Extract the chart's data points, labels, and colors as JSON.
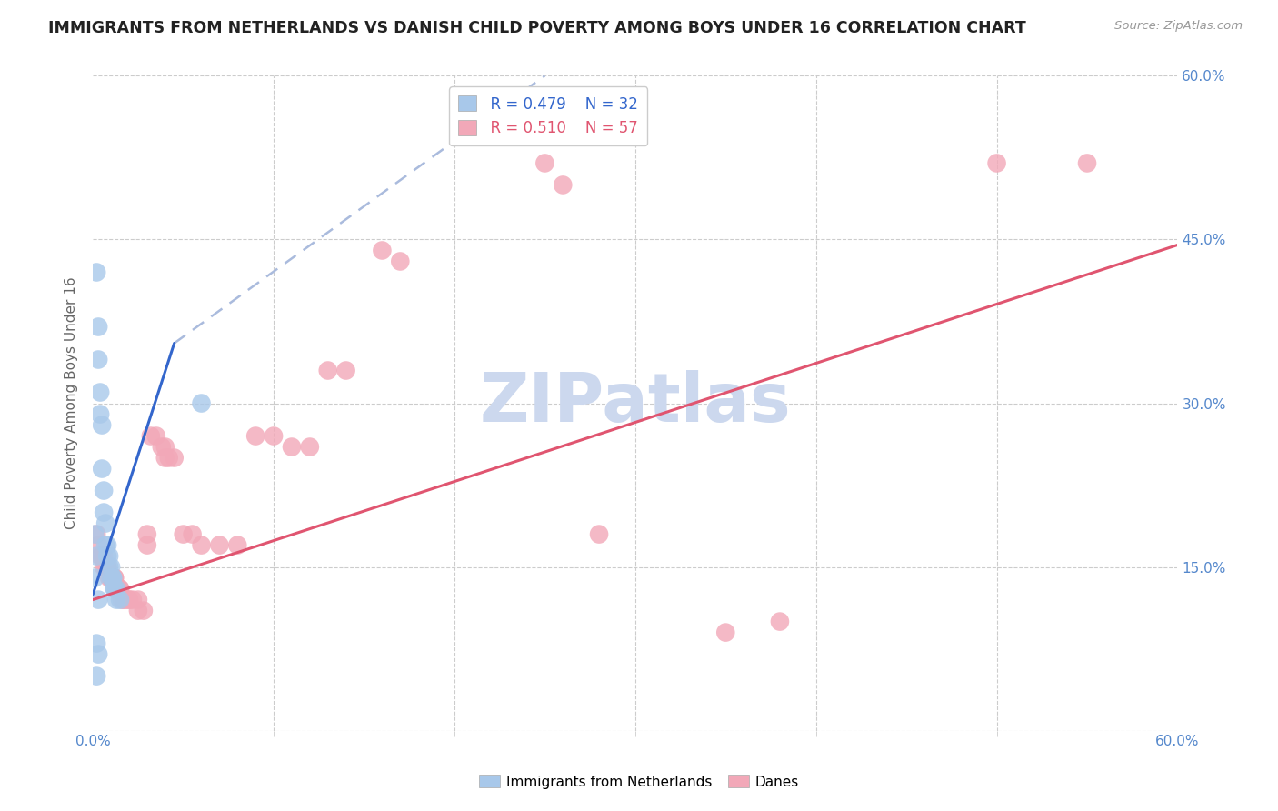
{
  "title": "IMMIGRANTS FROM NETHERLANDS VS DANISH CHILD POVERTY AMONG BOYS UNDER 16 CORRELATION CHART",
  "source": "Source: ZipAtlas.com",
  "ylabel": "Child Poverty Among Boys Under 16",
  "xlim": [
    0.0,
    0.6
  ],
  "ylim": [
    0.0,
    0.6
  ],
  "yticks_right": [
    0.0,
    0.15,
    0.3,
    0.45,
    0.6
  ],
  "ytick_labels_right": [
    "",
    "15.0%",
    "30.0%",
    "45.0%",
    "60.0%"
  ],
  "xtick_left_label": "0.0%",
  "xtick_right_label": "60.0%",
  "legend_blue_r": "R = 0.479",
  "legend_blue_n": "N = 32",
  "legend_pink_r": "R = 0.510",
  "legend_pink_n": "N = 57",
  "legend_label_blue": "Immigrants from Netherlands",
  "legend_label_pink": "Danes",
  "blue_color": "#a8c8ea",
  "pink_color": "#f2a8b8",
  "blue_line_color": "#3366cc",
  "pink_line_color": "#e05570",
  "blue_dash_color": "#aabbdd",
  "title_color": "#222222",
  "axis_label_color": "#5588cc",
  "watermark_color": "#ccd8ee",
  "background_color": "#ffffff",
  "grid_color": "#cccccc",
  "blue_scatter": [
    [
      0.002,
      0.42
    ],
    [
      0.003,
      0.37
    ],
    [
      0.003,
      0.34
    ],
    [
      0.004,
      0.31
    ],
    [
      0.004,
      0.29
    ],
    [
      0.005,
      0.28
    ],
    [
      0.005,
      0.24
    ],
    [
      0.006,
      0.22
    ],
    [
      0.006,
      0.2
    ],
    [
      0.007,
      0.19
    ],
    [
      0.007,
      0.17
    ],
    [
      0.008,
      0.17
    ],
    [
      0.008,
      0.16
    ],
    [
      0.009,
      0.16
    ],
    [
      0.009,
      0.15
    ],
    [
      0.01,
      0.15
    ],
    [
      0.01,
      0.14
    ],
    [
      0.011,
      0.14
    ],
    [
      0.011,
      0.14
    ],
    [
      0.012,
      0.13
    ],
    [
      0.012,
      0.13
    ],
    [
      0.013,
      0.13
    ],
    [
      0.013,
      0.12
    ],
    [
      0.015,
      0.12
    ],
    [
      0.001,
      0.18
    ],
    [
      0.002,
      0.16
    ],
    [
      0.001,
      0.14
    ],
    [
      0.003,
      0.12
    ],
    [
      0.002,
      0.08
    ],
    [
      0.003,
      0.07
    ],
    [
      0.002,
      0.05
    ],
    [
      0.06,
      0.3
    ]
  ],
  "pink_scatter": [
    [
      0.002,
      0.18
    ],
    [
      0.003,
      0.17
    ],
    [
      0.004,
      0.16
    ],
    [
      0.005,
      0.16
    ],
    [
      0.006,
      0.16
    ],
    [
      0.006,
      0.15
    ],
    [
      0.007,
      0.15
    ],
    [
      0.008,
      0.15
    ],
    [
      0.008,
      0.15
    ],
    [
      0.009,
      0.14
    ],
    [
      0.01,
      0.14
    ],
    [
      0.01,
      0.14
    ],
    [
      0.011,
      0.14
    ],
    [
      0.012,
      0.14
    ],
    [
      0.012,
      0.14
    ],
    [
      0.013,
      0.13
    ],
    [
      0.013,
      0.13
    ],
    [
      0.015,
      0.13
    ],
    [
      0.015,
      0.13
    ],
    [
      0.016,
      0.12
    ],
    [
      0.017,
      0.12
    ],
    [
      0.018,
      0.12
    ],
    [
      0.02,
      0.12
    ],
    [
      0.02,
      0.12
    ],
    [
      0.022,
      0.12
    ],
    [
      0.025,
      0.12
    ],
    [
      0.025,
      0.11
    ],
    [
      0.028,
      0.11
    ],
    [
      0.03,
      0.18
    ],
    [
      0.03,
      0.17
    ],
    [
      0.032,
      0.27
    ],
    [
      0.035,
      0.27
    ],
    [
      0.038,
      0.26
    ],
    [
      0.04,
      0.26
    ],
    [
      0.04,
      0.25
    ],
    [
      0.042,
      0.25
    ],
    [
      0.045,
      0.25
    ],
    [
      0.05,
      0.18
    ],
    [
      0.055,
      0.18
    ],
    [
      0.06,
      0.17
    ],
    [
      0.07,
      0.17
    ],
    [
      0.08,
      0.17
    ],
    [
      0.09,
      0.27
    ],
    [
      0.1,
      0.27
    ],
    [
      0.11,
      0.26
    ],
    [
      0.12,
      0.26
    ],
    [
      0.13,
      0.33
    ],
    [
      0.14,
      0.33
    ],
    [
      0.16,
      0.44
    ],
    [
      0.17,
      0.43
    ],
    [
      0.25,
      0.52
    ],
    [
      0.26,
      0.5
    ],
    [
      0.28,
      0.18
    ],
    [
      0.35,
      0.09
    ],
    [
      0.38,
      0.1
    ],
    [
      0.5,
      0.52
    ],
    [
      0.55,
      0.52
    ]
  ],
  "blue_line_solid": [
    [
      0.0,
      0.125
    ],
    [
      0.045,
      0.355
    ]
  ],
  "blue_line_dashed": [
    [
      0.045,
      0.355
    ],
    [
      0.25,
      0.6
    ]
  ],
  "pink_line": [
    [
      0.0,
      0.12
    ],
    [
      0.6,
      0.445
    ]
  ]
}
